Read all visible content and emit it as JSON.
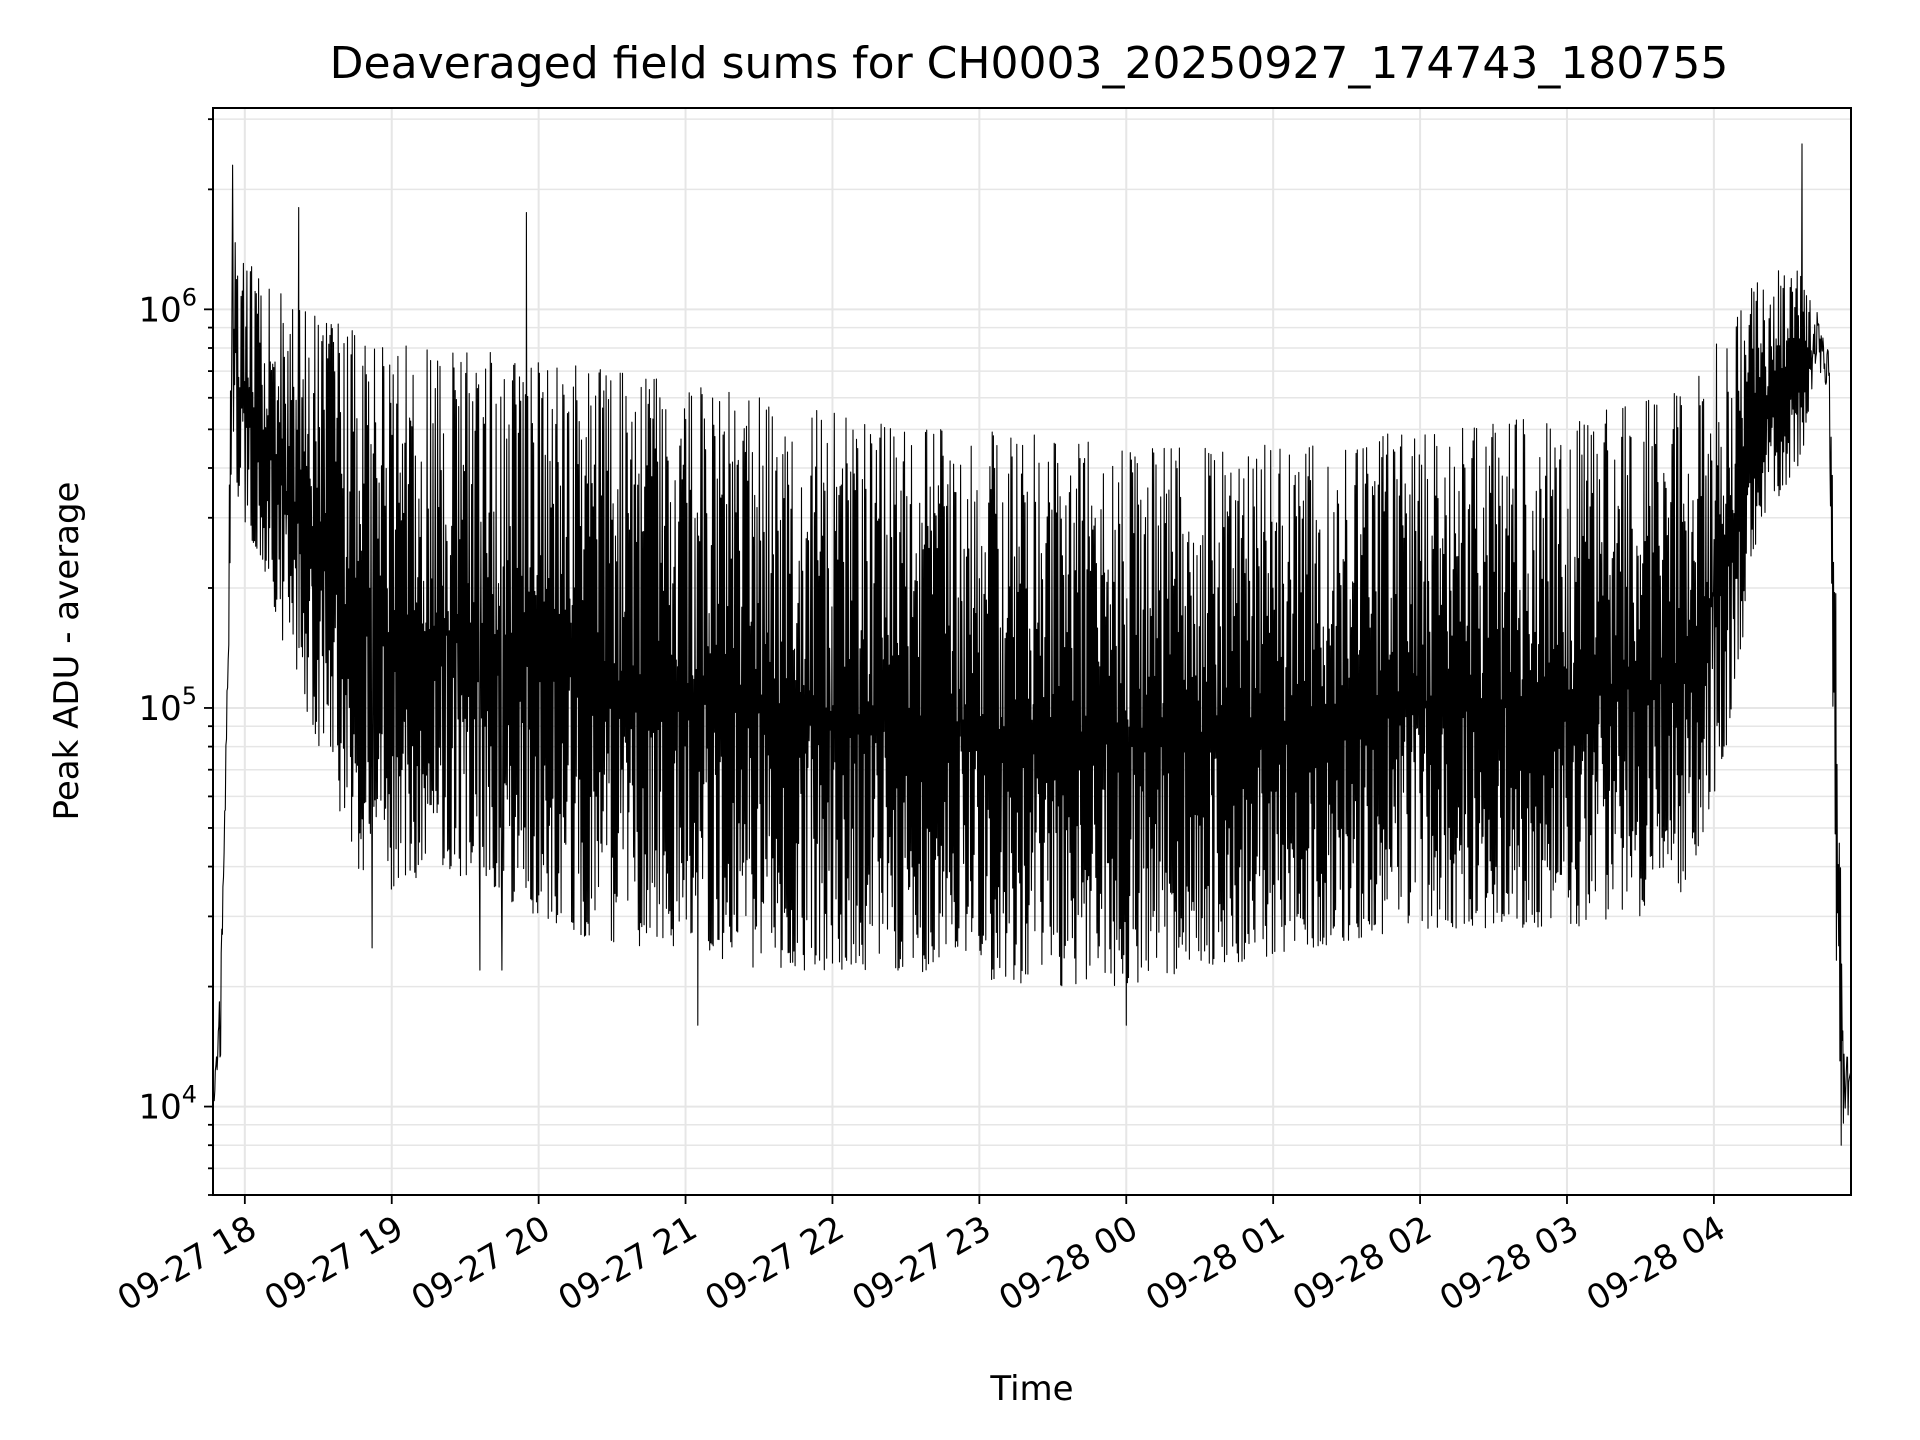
{
  "chart_data": {
    "type": "line",
    "title": "Deaveraged field sums for CH0003_20250927_174743_180755",
    "xlabel": "Time",
    "ylabel": "Peak ADU - average",
    "x_range": [
      "2025-09-27 17:47",
      "2025-09-28 04:56"
    ],
    "y_range": [
      6000,
      3200000
    ],
    "yscale": "log",
    "grid": true,
    "x_ticks": [
      {
        "value": "2025-09-27 18:00",
        "label": "09-27 18"
      },
      {
        "value": "2025-09-27 19:00",
        "label": "09-27 19"
      },
      {
        "value": "2025-09-27 20:00",
        "label": "09-27 20"
      },
      {
        "value": "2025-09-27 21:00",
        "label": "09-27 21"
      },
      {
        "value": "2025-09-27 22:00",
        "label": "09-27 22"
      },
      {
        "value": "2025-09-27 23:00",
        "label": "09-27 23"
      },
      {
        "value": "2025-09-28 00:00",
        "label": "09-28 00"
      },
      {
        "value": "2025-09-28 01:00",
        "label": "09-28 01"
      },
      {
        "value": "2025-09-28 02:00",
        "label": "09-28 02"
      },
      {
        "value": "2025-09-28 03:00",
        "label": "09-28 03"
      },
      {
        "value": "2025-09-28 04:00",
        "label": "09-28 04"
      }
    ],
    "y_ticks": [
      {
        "value": 10000,
        "base": "10",
        "exp": "4"
      },
      {
        "value": 100000,
        "base": "10",
        "exp": "5"
      },
      {
        "value": 1000000,
        "base": "10",
        "exp": "6"
      }
    ],
    "series": [
      {
        "color": "#000000",
        "envelope": {
          "time": [
            "2025-09-27 17:47",
            "2025-09-27 17:50",
            "2025-09-27 17:53",
            "2025-09-27 17:55",
            "2025-09-27 17:58",
            "2025-09-27 18:05",
            "2025-09-27 18:15",
            "2025-09-27 18:30",
            "2025-09-27 18:45",
            "2025-09-27 19:00",
            "2025-09-27 19:20",
            "2025-09-27 19:40",
            "2025-09-27 20:00",
            "2025-09-27 20:30",
            "2025-09-27 21:00",
            "2025-09-27 21:30",
            "2025-09-27 22:00",
            "2025-09-27 22:30",
            "2025-09-27 23:00",
            "2025-09-27 23:30",
            "2025-09-28 00:00",
            "2025-09-28 00:30",
            "2025-09-28 01:00",
            "2025-09-28 01:30",
            "2025-09-28 02:00",
            "2025-09-28 02:30",
            "2025-09-28 03:00",
            "2025-09-28 03:30",
            "2025-09-28 03:50",
            "2025-09-28 04:05",
            "2025-09-28 04:20",
            "2025-09-28 04:35",
            "2025-09-28 04:42",
            "2025-09-28 04:47",
            "2025-09-28 04:50",
            "2025-09-28 04:53",
            "2025-09-28 04:56"
          ],
          "upper": [
            10000,
            20000,
            150000,
            2000000,
            1500000,
            1200000,
            1100000,
            950000,
            900000,
            850000,
            800000,
            780000,
            750000,
            700000,
            650000,
            600000,
            550000,
            500000,
            500000,
            480000,
            450000,
            450000,
            460000,
            480000,
            500000,
            520000,
            550000,
            580000,
            650000,
            900000,
            1250000,
            1250000,
            1000000,
            800000,
            200000,
            15000,
            12000
          ],
          "lower": [
            10000,
            12000,
            100000,
            500000,
            300000,
            250000,
            150000,
            80000,
            40000,
            35000,
            40000,
            35000,
            30000,
            25000,
            25000,
            22000,
            22000,
            22000,
            21000,
            20000,
            20000,
            22000,
            24000,
            26000,
            28000,
            28000,
            28000,
            30000,
            35000,
            80000,
            300000,
            400000,
            700000,
            600000,
            20000,
            8000,
            10000
          ]
        },
        "spikes": [
          {
            "time": "2025-09-27 17:55",
            "value": 2300000
          },
          {
            "time": "2025-09-27 18:22",
            "value": 1800000
          },
          {
            "time": "2025-09-27 19:55",
            "value": 1750000
          },
          {
            "time": "2025-09-28 04:36",
            "value": 2600000
          },
          {
            "time": "2025-09-27 18:52",
            "value": 25000
          },
          {
            "time": "2025-09-27 19:36",
            "value": 22000
          },
          {
            "time": "2025-09-27 19:45",
            "value": 22000
          },
          {
            "time": "2025-09-27 21:05",
            "value": 16000
          },
          {
            "time": "2025-09-28 00:00",
            "value": 16000
          },
          {
            "time": "2025-09-28 04:52",
            "value": 8000
          }
        ]
      }
    ]
  }
}
